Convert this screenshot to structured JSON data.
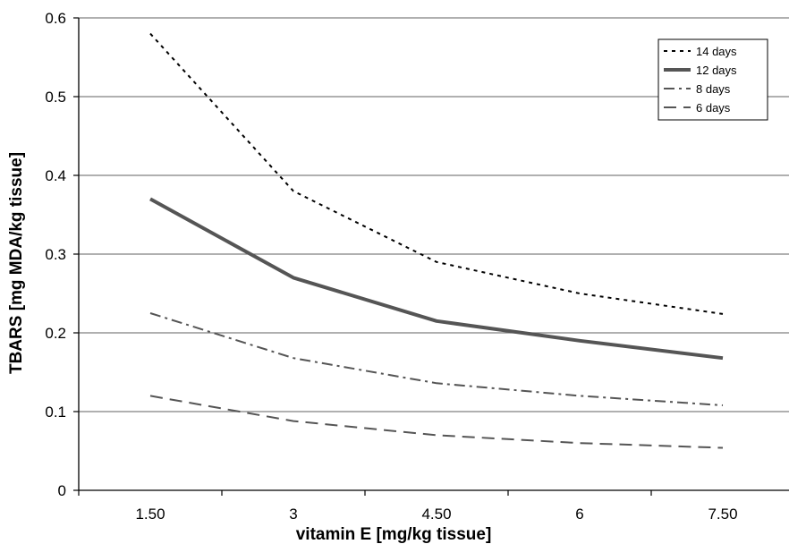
{
  "chart_data": {
    "type": "line",
    "title": "",
    "xlabel": "vitamin E [mg/kg tissue]",
    "ylabel": "TBARS [mg MDA/kg tissue]",
    "categories": [
      "1.50",
      "3",
      "4.50",
      "6",
      "7.50"
    ],
    "ylim": [
      0,
      0.6
    ],
    "yticks": [
      "0",
      "0.1",
      "0.2",
      "0.3",
      "0.4",
      "0.5",
      "0.6"
    ],
    "grid": true,
    "legend_position": "top-right",
    "series": [
      {
        "name": "14 days",
        "values": [
          0.58,
          0.38,
          0.29,
          0.25,
          0.224
        ],
        "style": "dotted",
        "color": "#000000"
      },
      {
        "name": "12 days",
        "values": [
          0.37,
          0.27,
          0.215,
          0.19,
          0.168
        ],
        "style": "solid-thick",
        "color": "#555555"
      },
      {
        "name": "8 days",
        "values": [
          0.225,
          0.168,
          0.136,
          0.12,
          0.108
        ],
        "style": "dash-dot",
        "color": "#555555"
      },
      {
        "name": "6 days",
        "values": [
          0.12,
          0.088,
          0.07,
          0.06,
          0.054
        ],
        "style": "dashed",
        "color": "#555555"
      }
    ]
  }
}
